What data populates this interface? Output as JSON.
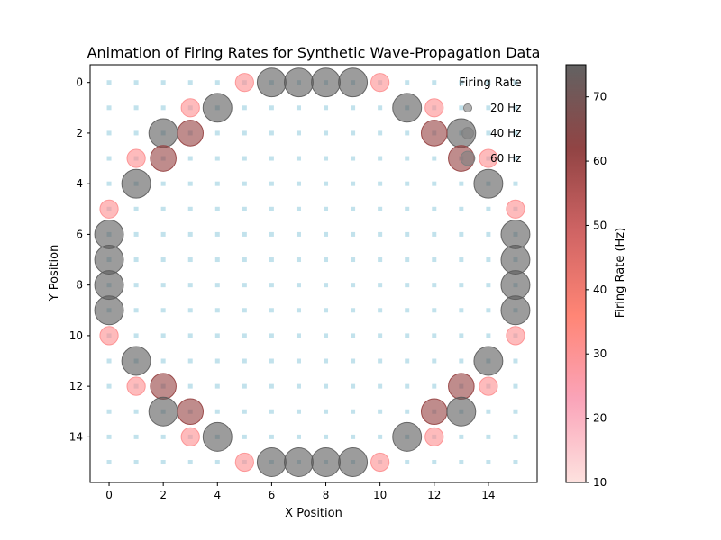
{
  "chart_data": {
    "type": "scatter",
    "title": "Animation of Firing Rates for Synthetic Wave-Propagation Data",
    "xlabel": "X Position",
    "ylabel": "Y Position",
    "xlim": [
      -0.7,
      15.8
    ],
    "ylim": [
      15.8,
      -0.7
    ],
    "y_inverted": true,
    "x_ticks": [
      "0",
      "2",
      "4",
      "6",
      "8",
      "10",
      "12",
      "14"
    ],
    "y_ticks": [
      "0",
      "2",
      "4",
      "6",
      "8",
      "10",
      "12",
      "14"
    ],
    "background_grid": {
      "x_range": [
        0,
        15
      ],
      "y_range": [
        0,
        15
      ],
      "color": "#add8e6",
      "marker": "square"
    },
    "colormap": [
      "#fde0dd",
      "#fa9fb5",
      "#ff7f6e",
      "#cd5c5c",
      "#8b3a3a",
      "#5a5a5a"
    ],
    "point_alpha": 0.6,
    "points": [
      {
        "x": 6,
        "y": 0,
        "rate": 75
      },
      {
        "x": 7,
        "y": 0,
        "rate": 75
      },
      {
        "x": 8,
        "y": 0,
        "rate": 75
      },
      {
        "x": 9,
        "y": 0,
        "rate": 75
      },
      {
        "x": 5,
        "y": 0,
        "rate": 30
      },
      {
        "x": 10,
        "y": 0,
        "rate": 30
      },
      {
        "x": 4,
        "y": 1,
        "rate": 75
      },
      {
        "x": 11,
        "y": 1,
        "rate": 75
      },
      {
        "x": 3,
        "y": 1,
        "rate": 30
      },
      {
        "x": 12,
        "y": 1,
        "rate": 30
      },
      {
        "x": 2,
        "y": 2,
        "rate": 75
      },
      {
        "x": 13,
        "y": 2,
        "rate": 75
      },
      {
        "x": 3,
        "y": 2,
        "rate": 60
      },
      {
        "x": 12,
        "y": 2,
        "rate": 60
      },
      {
        "x": 1,
        "y": 3,
        "rate": 30
      },
      {
        "x": 2,
        "y": 3,
        "rate": 60
      },
      {
        "x": 13,
        "y": 3,
        "rate": 60
      },
      {
        "x": 14,
        "y": 3,
        "rate": 30
      },
      {
        "x": 1,
        "y": 4,
        "rate": 75
      },
      {
        "x": 14,
        "y": 4,
        "rate": 75
      },
      {
        "x": 0,
        "y": 5,
        "rate": 30
      },
      {
        "x": 15,
        "y": 5,
        "rate": 30
      },
      {
        "x": 0,
        "y": 6,
        "rate": 75
      },
      {
        "x": 15,
        "y": 6,
        "rate": 75
      },
      {
        "x": 0,
        "y": 7,
        "rate": 75
      },
      {
        "x": 15,
        "y": 7,
        "rate": 75
      },
      {
        "x": 0,
        "y": 8,
        "rate": 75
      },
      {
        "x": 15,
        "y": 8,
        "rate": 75
      },
      {
        "x": 0,
        "y": 9,
        "rate": 75
      },
      {
        "x": 15,
        "y": 9,
        "rate": 75
      },
      {
        "x": 0,
        "y": 10,
        "rate": 30
      },
      {
        "x": 15,
        "y": 10,
        "rate": 30
      },
      {
        "x": 1,
        "y": 11,
        "rate": 75
      },
      {
        "x": 14,
        "y": 11,
        "rate": 75
      },
      {
        "x": 1,
        "y": 12,
        "rate": 30
      },
      {
        "x": 2,
        "y": 12,
        "rate": 60
      },
      {
        "x": 13,
        "y": 12,
        "rate": 60
      },
      {
        "x": 14,
        "y": 12,
        "rate": 30
      },
      {
        "x": 2,
        "y": 13,
        "rate": 75
      },
      {
        "x": 3,
        "y": 13,
        "rate": 60
      },
      {
        "x": 12,
        "y": 13,
        "rate": 60
      },
      {
        "x": 13,
        "y": 13,
        "rate": 75
      },
      {
        "x": 4,
        "y": 14,
        "rate": 75
      },
      {
        "x": 11,
        "y": 14,
        "rate": 75
      },
      {
        "x": 3,
        "y": 14,
        "rate": 30
      },
      {
        "x": 12,
        "y": 14,
        "rate": 30
      },
      {
        "x": 6,
        "y": 15,
        "rate": 75
      },
      {
        "x": 7,
        "y": 15,
        "rate": 75
      },
      {
        "x": 8,
        "y": 15,
        "rate": 75
      },
      {
        "x": 9,
        "y": 15,
        "rate": 75
      },
      {
        "x": 5,
        "y": 15,
        "rate": 30
      },
      {
        "x": 10,
        "y": 15,
        "rate": 30
      }
    ],
    "legend": {
      "title": "Firing Rate",
      "placement": "top-right",
      "entries": [
        {
          "label": "20 Hz",
          "rate": 20
        },
        {
          "label": "40 Hz",
          "rate": 40
        },
        {
          "label": "60 Hz",
          "rate": 60
        }
      ]
    },
    "colorbar": {
      "label": "Firing Rate (Hz)",
      "range": [
        10,
        75
      ],
      "ticks": [
        "10",
        "20",
        "30",
        "40",
        "50",
        "60",
        "70"
      ],
      "tick_values": [
        10,
        20,
        30,
        40,
        50,
        60,
        70
      ]
    }
  }
}
